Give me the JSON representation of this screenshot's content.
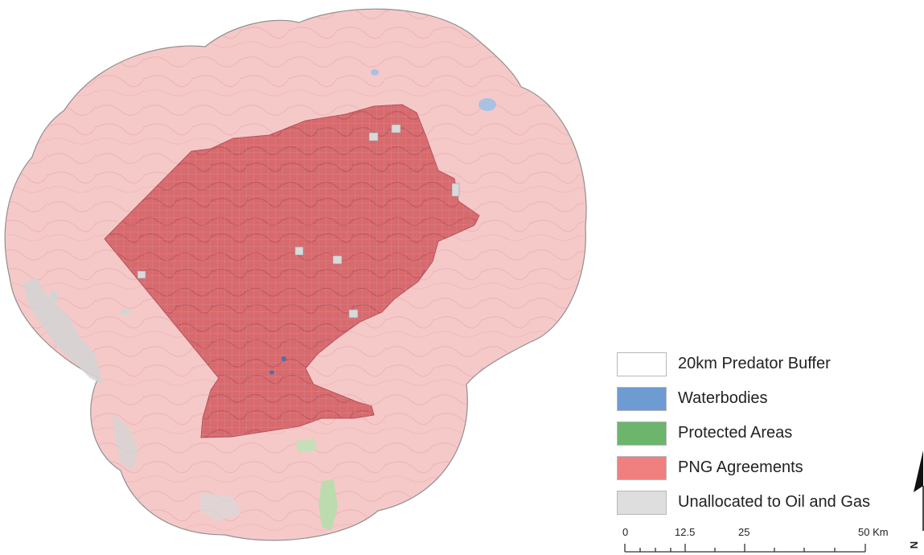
{
  "legend": {
    "items": [
      {
        "label": "20km Predator Buffer",
        "color": "#ffffff"
      },
      {
        "label": "Waterbodies",
        "color": "#6e9bd2"
      },
      {
        "label": "Protected Areas",
        "color": "#6db46c"
      },
      {
        "label": "PNG Agreements",
        "color": "#f08080"
      },
      {
        "label": "Unallocated to Oil and Gas",
        "color": "#dedede"
      }
    ]
  },
  "scalebar": {
    "ticks": [
      "0",
      "12.5",
      "25",
      "50 Km"
    ]
  },
  "north_arrow": {
    "label": "N"
  },
  "colors": {
    "buffer_fill": "#f6c9c9",
    "agreement_fill": "#db6a6e",
    "unallocated": "#d9d9d9",
    "protected": "#b9dcaa",
    "water": "#a8c3e6"
  }
}
